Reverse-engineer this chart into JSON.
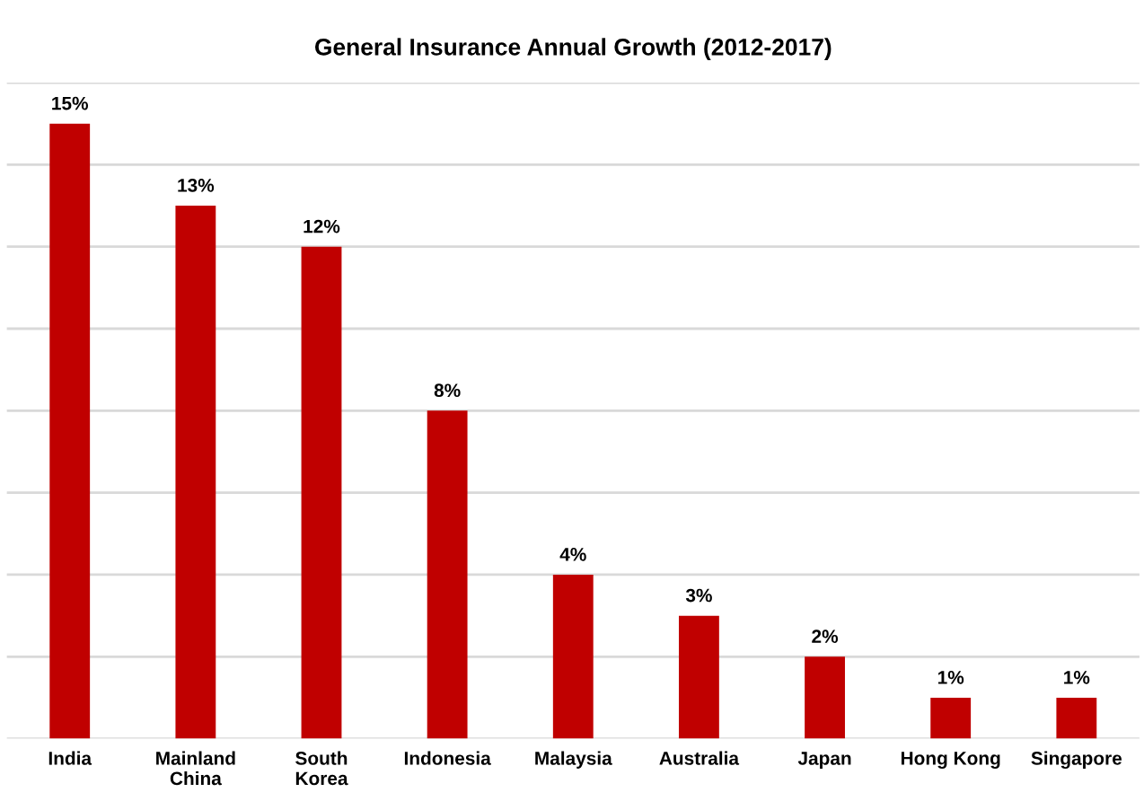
{
  "chart_data": {
    "type": "bar",
    "title": "General Insurance Annual Growth (2012-2017)",
    "categories": [
      "India",
      "Mainland\nChina",
      "South\nKorea",
      "Indonesia",
      "Malaysia",
      "Australia",
      "Japan",
      "Hong Kong",
      "Singapore"
    ],
    "values": [
      15,
      13,
      12,
      8,
      4,
      3,
      2,
      1,
      1
    ],
    "value_labels": [
      "15%",
      "13%",
      "12%",
      "8%",
      "4%",
      "3%",
      "2%",
      "1%",
      "1%"
    ],
    "color": "#c00000",
    "ylim": [
      0,
      16
    ],
    "yticks": [
      {
        "value": 0,
        "label": null
      },
      {
        "value": 2,
        "label": null
      },
      {
        "value": 4,
        "label": null
      },
      {
        "value": 6,
        "label": null
      },
      {
        "value": 8,
        "label": null
      },
      {
        "value": 10,
        "label": null
      },
      {
        "value": 12,
        "label": null
      },
      {
        "value": 14,
        "label": null
      },
      {
        "value": 16,
        "label": null
      }
    ],
    "grid": "y",
    "tick_labels": "x"
  }
}
